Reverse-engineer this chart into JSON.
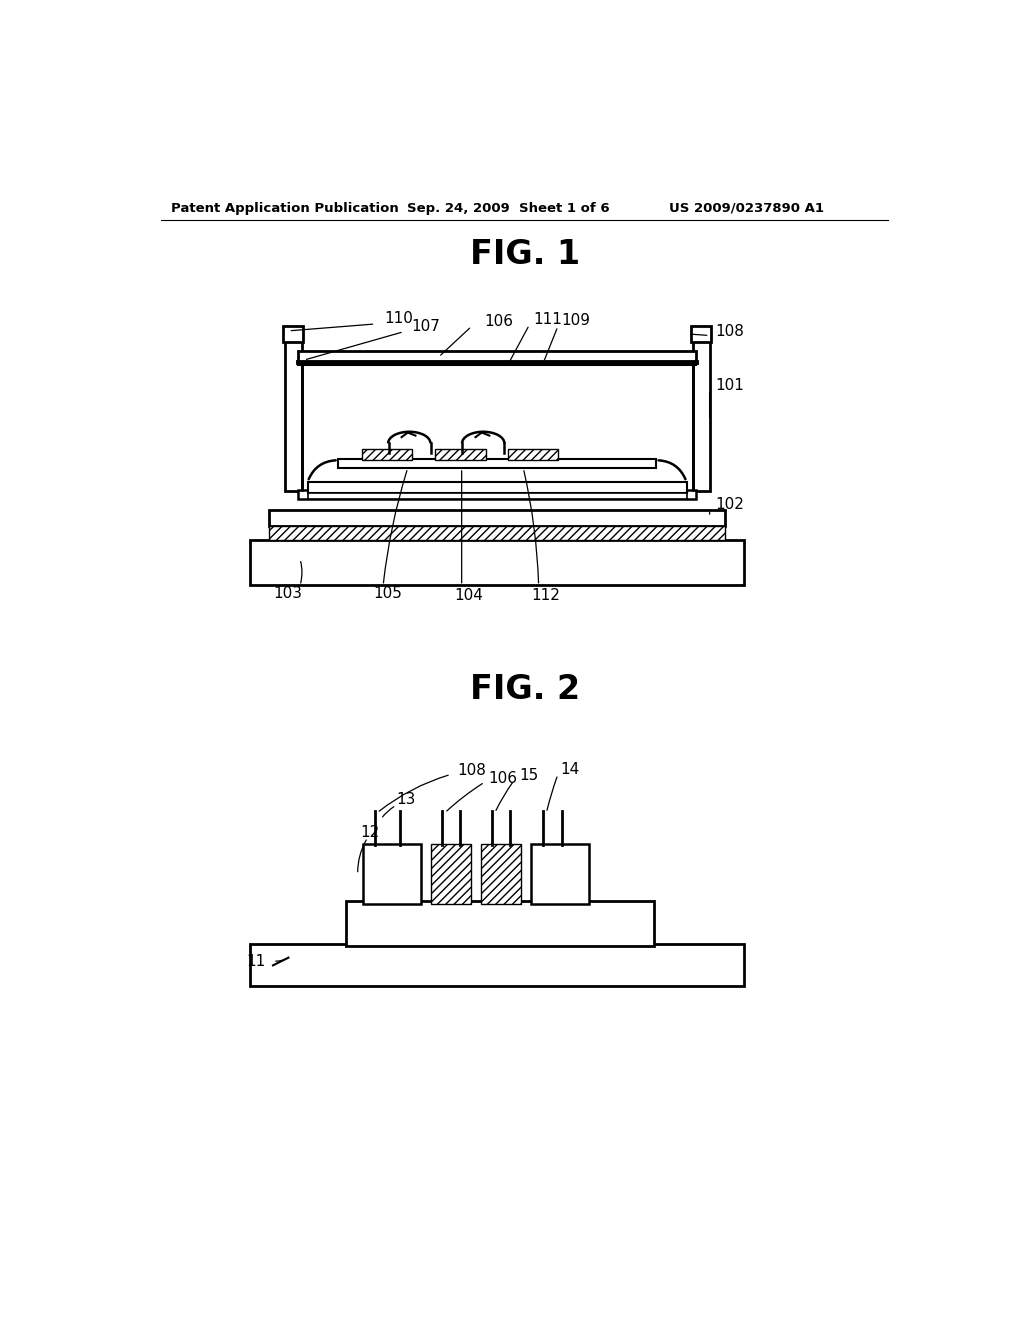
{
  "bg_color": "#ffffff",
  "header_left": "Patent Application Publication",
  "header_mid": "Sep. 24, 2009  Sheet 1 of 6",
  "header_right": "US 2009/0237890 A1",
  "fig1_title": "FIG. 1",
  "fig2_title": "FIG. 2"
}
